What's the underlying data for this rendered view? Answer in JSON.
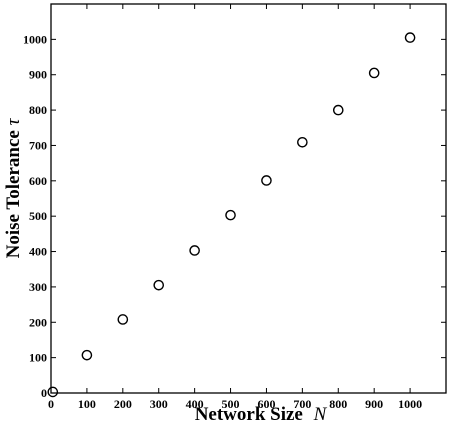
{
  "chart_data": {
    "type": "scatter",
    "title": "",
    "xlabel": "Network Size",
    "xlabel_var": "N",
    "ylabel": "Noise Tolerance",
    "ylabel_var": "τ",
    "xlim": [
      0,
      1100
    ],
    "ylim": [
      0,
      1100
    ],
    "xticks": [
      0,
      100,
      200,
      300,
      400,
      500,
      600,
      700,
      800,
      900,
      1000
    ],
    "yticks": [
      0,
      100,
      200,
      300,
      400,
      500,
      600,
      700,
      800,
      900,
      1000
    ],
    "grid": false,
    "legend": "none",
    "marker": "open-circle",
    "marker_color": "#000000",
    "series": [
      {
        "x": [
          5,
          100,
          200,
          300,
          400,
          500,
          600,
          700,
          800,
          900,
          1000
        ],
        "y": [
          3,
          107,
          208,
          305,
          403,
          503,
          601,
          709,
          800,
          905,
          1005
        ]
      }
    ]
  }
}
